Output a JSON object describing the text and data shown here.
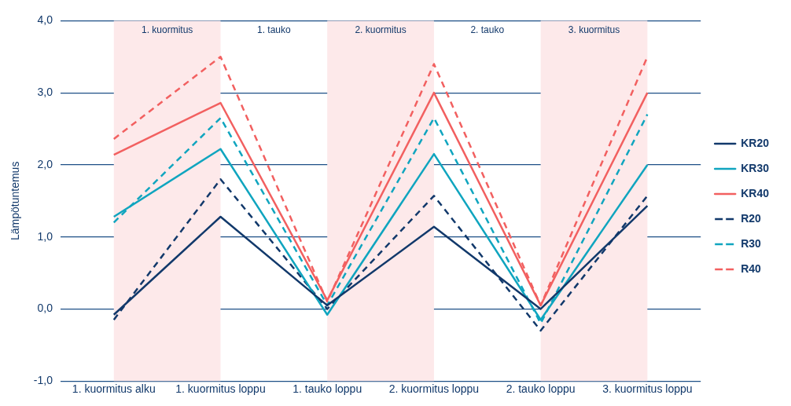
{
  "chart_data": {
    "type": "line",
    "ylabel": "Lämpötuntemus",
    "categories": [
      "1. kuormitus alku",
      "1. kuormitus loppu",
      "1. tauko loppu",
      "2. kuormitus loppu",
      "2. tauko loppu",
      "3. kuormitus loppu"
    ],
    "series": [
      {
        "name": "KR20",
        "color": "#12396b",
        "line_style": "solid",
        "values": [
          -0.08,
          1.28,
          0.05,
          1.14,
          0.0,
          1.43
        ]
      },
      {
        "name": "KR30",
        "color": "#10a5bf",
        "line_style": "solid",
        "values": [
          1.28,
          2.22,
          -0.08,
          2.15,
          -0.15,
          2.0
        ]
      },
      {
        "name": "KR40",
        "color": "#f26060",
        "line_style": "solid",
        "values": [
          2.14,
          2.86,
          0.12,
          3.0,
          0.05,
          3.0
        ]
      },
      {
        "name": "R20",
        "color": "#12396b",
        "line_style": "dashed",
        "values": [
          -0.15,
          1.8,
          0.0,
          1.57,
          -0.3,
          1.57
        ]
      },
      {
        "name": "R30",
        "color": "#10a5bf",
        "line_style": "dashed",
        "values": [
          1.2,
          2.65,
          0.05,
          2.65,
          -0.2,
          2.7
        ]
      },
      {
        "name": "R40",
        "color": "#f26060",
        "line_style": "dashed",
        "values": [
          2.36,
          3.5,
          0.1,
          3.4,
          0.05,
          3.5
        ]
      }
    ],
    "bands": [
      {
        "axis": "x",
        "from": "1. kuormitus alku",
        "to": "1. kuormitus loppu",
        "label": "1. kuormitus",
        "color": "#fde9ea"
      },
      {
        "axis": "x",
        "from": "1. tauko loppu",
        "to": "2. kuormitus loppu",
        "label": "2. kuormitus",
        "color": "#fde9ea"
      },
      {
        "axis": "x",
        "from": "2. tauko loppu",
        "to": "3. kuormitus loppu",
        "label": "3. kuormitus",
        "color": "#fde9ea"
      }
    ],
    "annotations": [
      "1. tauko",
      "2. tauko"
    ],
    "ylim": [
      -1,
      4
    ],
    "yticks": [
      {
        "value": -1,
        "label": "-1,0"
      },
      {
        "value": 0,
        "label": "0,0"
      },
      {
        "value": 1,
        "label": "1,0"
      },
      {
        "value": 2,
        "label": "2,0"
      },
      {
        "value": 3,
        "label": "3,0"
      },
      {
        "value": 4,
        "label": "4,0"
      }
    ],
    "grid": "y",
    "legend": "right"
  }
}
